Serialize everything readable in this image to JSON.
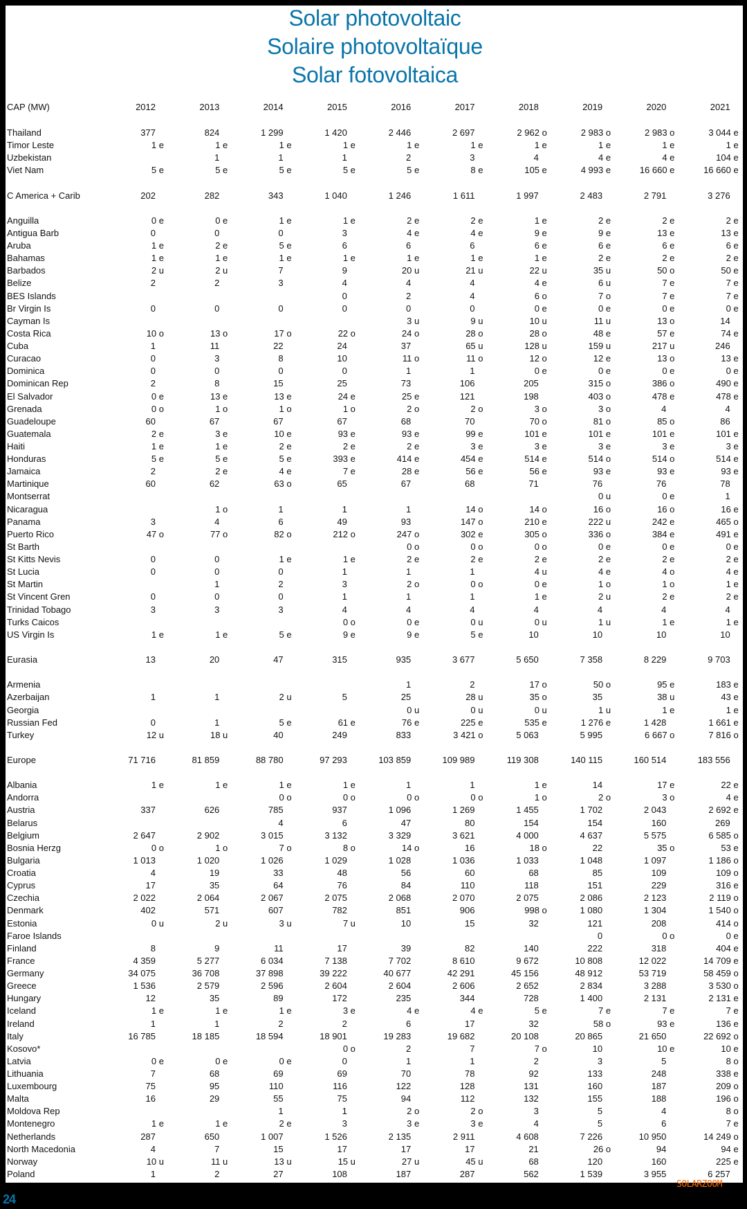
{
  "title": [
    "Solar photovoltaic",
    "Solaire photovoltaïque",
    "Solar fotovoltaica"
  ],
  "header": {
    "label": "CAP (MW)",
    "years": [
      "2012",
      "2013",
      "2014",
      "2015",
      "2016",
      "2017",
      "2018",
      "2019",
      "2020",
      "2021"
    ]
  },
  "rows": [
    {
      "label": "Thailand",
      "cells": [
        "377",
        "824",
        "1 299",
        "1 420",
        "2 446",
        "2 697",
        "2 962 o",
        "2 983 o",
        "2 983 o",
        "3 044 e"
      ]
    },
    {
      "label": "Timor Leste",
      "cells": [
        "1 e",
        "1 e",
        "1 e",
        "1 e",
        "1 e",
        "1 e",
        "1 e",
        "1 e",
        "1 e",
        "1 e"
      ]
    },
    {
      "label": "Uzbekistan",
      "cells": [
        "",
        "1",
        "1",
        "1",
        "2",
        "3",
        "4",
        "4 e",
        "4 e",
        "104 e"
      ]
    },
    {
      "label": "Viet Nam",
      "cells": [
        "5 e",
        "5 e",
        "5 e",
        "5 e",
        "5 e",
        "8 e",
        "105 e",
        "4 993 e",
        "16 660 e",
        "16 660 e"
      ]
    },
    {
      "spacer": true
    },
    {
      "label": "C America + Carib",
      "cells": [
        "202",
        "282",
        "343",
        "1 040",
        "1 246",
        "1 611",
        "1 997",
        "2 483",
        "2 791",
        "3 276"
      ]
    },
    {
      "spacer": true
    },
    {
      "label": "Anguilla",
      "cells": [
        "0 e",
        "0 e",
        "1 e",
        "1 e",
        "2 e",
        "2 e",
        "1 e",
        "2 e",
        "2 e",
        "2 e"
      ]
    },
    {
      "label": "Antigua Barb",
      "cells": [
        "0",
        "0",
        "0",
        "3",
        "4 e",
        "4 e",
        "9 e",
        "9 e",
        "13 e",
        "13 e"
      ]
    },
    {
      "label": "Aruba",
      "cells": [
        "1 e",
        "2 e",
        "5 e",
        "6",
        "6",
        "6",
        "6 e",
        "6 e",
        "6 e",
        "6 e"
      ]
    },
    {
      "label": "Bahamas",
      "cells": [
        "1 e",
        "1 e",
        "1 e",
        "1 e",
        "1 e",
        "1 e",
        "1 e",
        "2 e",
        "2 e",
        "2 e"
      ]
    },
    {
      "label": "Barbados",
      "cells": [
        "2 u",
        "2 u",
        "7",
        "9",
        "20 u",
        "21 u",
        "22 u",
        "35 u",
        "50 o",
        "50 e"
      ]
    },
    {
      "label": "Belize",
      "cells": [
        "2",
        "2",
        "3",
        "4",
        "4",
        "4",
        "4 e",
        "6 u",
        "7 e",
        "7 e"
      ]
    },
    {
      "label": "BES Islands",
      "cells": [
        "",
        "",
        "",
        "0",
        "2",
        "4",
        "6 o",
        "7 o",
        "7 e",
        "7 e"
      ]
    },
    {
      "label": "Br Virgin Is",
      "cells": [
        "0",
        "0",
        "0",
        "0",
        "0",
        "0",
        "0 e",
        "0 e",
        "0 e",
        "0 e"
      ]
    },
    {
      "label": "Cayman Is",
      "cells": [
        "",
        "",
        "",
        "",
        "3 u",
        "9 u",
        "10 u",
        "11 u",
        "13 o",
        "14"
      ]
    },
    {
      "label": "Costa Rica",
      "cells": [
        "10 o",
        "13 o",
        "17 o",
        "22 o",
        "24 o",
        "28 o",
        "28 o",
        "48 e",
        "57 e",
        "74 e"
      ]
    },
    {
      "label": "Cuba",
      "cells": [
        "1",
        "11",
        "22",
        "24",
        "37",
        "65 u",
        "128 u",
        "159 u",
        "217 u",
        "246"
      ]
    },
    {
      "label": "Curacao",
      "cells": [
        "0",
        "3",
        "8",
        "10",
        "11 o",
        "11 o",
        "12 o",
        "12 e",
        "13 o",
        "13 e"
      ]
    },
    {
      "label": "Dominica",
      "cells": [
        "0",
        "0",
        "0",
        "0",
        "1",
        "1",
        "0 e",
        "0 e",
        "0 e",
        "0 e"
      ]
    },
    {
      "label": "Dominican Rep",
      "cells": [
        "2",
        "8",
        "15",
        "25",
        "73",
        "106",
        "205",
        "315 o",
        "386 o",
        "490 e"
      ]
    },
    {
      "label": "El Salvador",
      "cells": [
        "0 e",
        "13 e",
        "13 e",
        "24 e",
        "25 e",
        "121",
        "198",
        "403 o",
        "478 e",
        "478 e"
      ]
    },
    {
      "label": "Grenada",
      "cells": [
        "0 o",
        "1 o",
        "1 o",
        "1 o",
        "2 o",
        "2 o",
        "3 o",
        "3 o",
        "4",
        "4"
      ]
    },
    {
      "label": "Guadeloupe",
      "cells": [
        "60",
        "67",
        "67",
        "67",
        "68",
        "70",
        "70 o",
        "81 o",
        "85 o",
        "86"
      ]
    },
    {
      "label": "Guatemala",
      "cells": [
        "2 e",
        "3 e",
        "10 e",
        "93 e",
        "93 e",
        "99 e",
        "101 e",
        "101 e",
        "101 e",
        "101 e"
      ]
    },
    {
      "label": "Haiti",
      "cells": [
        "1 e",
        "1 e",
        "2 e",
        "2 e",
        "2 e",
        "3 e",
        "3 e",
        "3 e",
        "3 e",
        "3 e"
      ]
    },
    {
      "label": "Honduras",
      "cells": [
        "5 e",
        "5 e",
        "5 e",
        "393 e",
        "414 e",
        "454 e",
        "514 e",
        "514 o",
        "514 o",
        "514 e"
      ]
    },
    {
      "label": "Jamaica",
      "cells": [
        "2",
        "2 e",
        "4 e",
        "7 e",
        "28 e",
        "56 e",
        "56 e",
        "93 e",
        "93 e",
        "93 e"
      ]
    },
    {
      "label": "Martinique",
      "cells": [
        "60",
        "62",
        "63 o",
        "65",
        "67",
        "68",
        "71",
        "76",
        "76",
        "78"
      ]
    },
    {
      "label": "Montserrat",
      "cells": [
        "",
        "",
        "",
        "",
        "",
        "",
        "",
        "0 u",
        "0 e",
        "1"
      ]
    },
    {
      "label": "Nicaragua",
      "cells": [
        "",
        "1 o",
        "1",
        "1",
        "1",
        "14 o",
        "14 o",
        "16 o",
        "16 o",
        "16 e"
      ]
    },
    {
      "label": "Panama",
      "cells": [
        "3",
        "4",
        "6",
        "49",
        "93",
        "147 o",
        "210 e",
        "222 u",
        "242 e",
        "465 o"
      ]
    },
    {
      "label": "Puerto Rico",
      "cells": [
        "47 o",
        "77 o",
        "82 o",
        "212 o",
        "247 o",
        "302 e",
        "305 o",
        "336 o",
        "384 e",
        "491 e"
      ]
    },
    {
      "label": "St Barth",
      "cells": [
        "",
        "",
        "",
        "",
        "0 o",
        "0 o",
        "0 o",
        "0 e",
        "0 e",
        "0 e"
      ]
    },
    {
      "label": "St Kitts Nevis",
      "cells": [
        "0",
        "0",
        "1 e",
        "1 e",
        "2 e",
        "2 e",
        "2 e",
        "2 e",
        "2 e",
        "2 e"
      ]
    },
    {
      "label": "St Lucia",
      "cells": [
        "0",
        "0",
        "0",
        "1",
        "1",
        "1",
        "4 u",
        "4 e",
        "4 o",
        "4 e"
      ]
    },
    {
      "label": "St Martin",
      "cells": [
        "",
        "1",
        "2",
        "3",
        "2 o",
        "0 o",
        "0 e",
        "1 o",
        "1 o",
        "1 e"
      ]
    },
    {
      "label": "St Vincent Gren",
      "cells": [
        "0",
        "0",
        "0",
        "1",
        "1",
        "1",
        "1 e",
        "2 u",
        "2 e",
        "2 e"
      ]
    },
    {
      "label": "Trinidad Tobago",
      "cells": [
        "3",
        "3",
        "3",
        "4",
        "4",
        "4",
        "4",
        "4",
        "4",
        "4"
      ]
    },
    {
      "label": "Turks Caicos",
      "cells": [
        "",
        "",
        "",
        "0 o",
        "0 e",
        "0 u",
        "0 u",
        "1 u",
        "1 e",
        "1 e"
      ]
    },
    {
      "label": "US Virgin Is",
      "cells": [
        "1 e",
        "1 e",
        "5 e",
        "9 e",
        "9 e",
        "5 e",
        "10",
        "10",
        "10",
        "10"
      ]
    },
    {
      "spacer": true
    },
    {
      "label": "Eurasia",
      "cells": [
        "13",
        "20",
        "47",
        "315",
        "935",
        "3 677",
        "5 650",
        "7 358",
        "8 229",
        "9 703"
      ]
    },
    {
      "spacer": true
    },
    {
      "label": "Armenia",
      "cells": [
        "",
        "",
        "",
        "",
        "1",
        "2",
        "17 o",
        "50 o",
        "95 e",
        "183 e"
      ]
    },
    {
      "label": "Azerbaijan",
      "cells": [
        "1",
        "1",
        "2 u",
        "5",
        "25",
        "28 u",
        "35 o",
        "35",
        "38 u",
        "43 e"
      ]
    },
    {
      "label": "Georgia",
      "cells": [
        "",
        "",
        "",
        "",
        "0 u",
        "0 u",
        "0 u",
        "1 u",
        "1 e",
        "1 e"
      ]
    },
    {
      "label": "Russian Fed",
      "cells": [
        "0",
        "1",
        "5 e",
        "61 e",
        "76 e",
        "225 e",
        "535 e",
        "1 276 e",
        "1 428",
        "1 661 e"
      ]
    },
    {
      "label": "Turkey",
      "cells": [
        "12 u",
        "18 u",
        "40",
        "249",
        "833",
        "3 421 o",
        "5 063",
        "5 995",
        "6 667 o",
        "7 816 o"
      ]
    },
    {
      "spacer": true
    },
    {
      "label": "Europe",
      "cells": [
        "71 716",
        "81 859",
        "88 780",
        "97 293",
        "103 859",
        "109 989",
        "119 308",
        "140 115",
        "160 514",
        "183 556"
      ]
    },
    {
      "spacer": true
    },
    {
      "label": "Albania",
      "cells": [
        "1 e",
        "1 e",
        "1 e",
        "1 e",
        "1",
        "1",
        "1 e",
        "14",
        "17 e",
        "22 e"
      ]
    },
    {
      "label": "Andorra",
      "cells": [
        "",
        "",
        "0 o",
        "0 o",
        "0 o",
        "0 o",
        "1 o",
        "2 o",
        "3 o",
        "4 e"
      ]
    },
    {
      "label": "Austria",
      "cells": [
        "337",
        "626",
        "785",
        "937",
        "1 096",
        "1 269",
        "1 455",
        "1 702",
        "2 043",
        "2 692 e"
      ]
    },
    {
      "label": "Belarus",
      "cells": [
        "",
        "",
        "4",
        "6",
        "47",
        "80",
        "154",
        "154",
        "160",
        "269"
      ]
    },
    {
      "label": "Belgium",
      "cells": [
        "2 647",
        "2 902",
        "3 015",
        "3 132",
        "3 329",
        "3 621",
        "4 000",
        "4 637",
        "5 575",
        "6 585 o"
      ]
    },
    {
      "label": "Bosnia Herzg",
      "cells": [
        "0 o",
        "1 o",
        "7 o",
        "8 o",
        "14 o",
        "16",
        "18 o",
        "22",
        "35 o",
        "53 e"
      ]
    },
    {
      "label": "Bulgaria",
      "cells": [
        "1 013",
        "1 020",
        "1 026",
        "1 029",
        "1 028",
        "1 036",
        "1 033",
        "1 048",
        "1 097",
        "1 186 o"
      ]
    },
    {
      "label": "Croatia",
      "cells": [
        "4",
        "19",
        "33",
        "48",
        "56",
        "60",
        "68",
        "85",
        "109",
        "109 o"
      ]
    },
    {
      "label": "Cyprus",
      "cells": [
        "17",
        "35",
        "64",
        "76",
        "84",
        "110",
        "118",
        "151",
        "229",
        "316 e"
      ]
    },
    {
      "label": "Czechia",
      "cells": [
        "2 022",
        "2 064",
        "2 067",
        "2 075",
        "2 068",
        "2 070",
        "2 075",
        "2 086",
        "2 123",
        "2 119 o"
      ]
    },
    {
      "label": "Denmark",
      "cells": [
        "402",
        "571",
        "607",
        "782",
        "851",
        "906",
        "998 o",
        "1 080",
        "1 304",
        "1 540 o"
      ]
    },
    {
      "label": "Estonia",
      "cells": [
        "0 u",
        "2 u",
        "3 u",
        "7 u",
        "10",
        "15",
        "32",
        "121",
        "208",
        "414 o"
      ]
    },
    {
      "label": "Faroe Islands",
      "cells": [
        "",
        "",
        "",
        "",
        "",
        "",
        "",
        "0",
        "0 o",
        "0 e"
      ]
    },
    {
      "label": "Finland",
      "cells": [
        "8",
        "9",
        "11",
        "17",
        "39",
        "82",
        "140",
        "222",
        "318",
        "404 e"
      ]
    },
    {
      "label": "France",
      "cells": [
        "4 359",
        "5 277",
        "6 034",
        "7 138",
        "7 702",
        "8 610",
        "9 672",
        "10 808",
        "12 022",
        "14 709 e"
      ]
    },
    {
      "label": "Germany",
      "cells": [
        "34 075",
        "36 708",
        "37 898",
        "39 222",
        "40 677",
        "42 291",
        "45 156",
        "48 912",
        "53 719",
        "58 459 o"
      ]
    },
    {
      "label": "Greece",
      "cells": [
        "1 536",
        "2 579",
        "2 596",
        "2 604",
        "2 604",
        "2 606",
        "2 652",
        "2 834",
        "3 288",
        "3 530 o"
      ]
    },
    {
      "label": "Hungary",
      "cells": [
        "12",
        "35",
        "89",
        "172",
        "235",
        "344",
        "728",
        "1 400",
        "2 131",
        "2 131 e"
      ]
    },
    {
      "label": "Iceland",
      "cells": [
        "1 e",
        "1 e",
        "1 e",
        "3 e",
        "4 e",
        "4 e",
        "5 e",
        "7 e",
        "7 e",
        "7 e"
      ]
    },
    {
      "label": "Ireland",
      "cells": [
        "1",
        "1",
        "2",
        "2",
        "6",
        "17",
        "32",
        "58 o",
        "93 e",
        "136 e"
      ]
    },
    {
      "label": "Italy",
      "cells": [
        "16 785",
        "18 185",
        "18 594",
        "18 901",
        "19 283",
        "19 682",
        "20 108",
        "20 865",
        "21 650",
        "22 692 o"
      ]
    },
    {
      "label": "Kosovo*",
      "cells": [
        "",
        "",
        "",
        "0 o",
        "2",
        "7",
        "7 o",
        "10",
        "10 e",
        "10 e"
      ]
    },
    {
      "label": "Latvia",
      "cells": [
        "0 e",
        "0 e",
        "0 e",
        "0",
        "1",
        "1",
        "2",
        "3",
        "5",
        "8 o"
      ]
    },
    {
      "label": "Lithuania",
      "cells": [
        "7",
        "68",
        "69",
        "69",
        "70",
        "78",
        "92",
        "133",
        "248",
        "338 e"
      ]
    },
    {
      "label": "Luxembourg",
      "cells": [
        "75",
        "95",
        "110",
        "116",
        "122",
        "128",
        "131",
        "160",
        "187",
        "209 o"
      ]
    },
    {
      "label": "Malta",
      "cells": [
        "16",
        "29",
        "55",
        "75",
        "94",
        "112",
        "132",
        "155",
        "188",
        "196 o"
      ]
    },
    {
      "label": "Moldova Rep",
      "cells": [
        "",
        "",
        "1",
        "1",
        "2 o",
        "2 o",
        "3",
        "5",
        "4",
        "8 o"
      ]
    },
    {
      "label": "Montenegro",
      "cells": [
        "1 e",
        "1 e",
        "2 e",
        "3",
        "3 e",
        "3 e",
        "4",
        "5",
        "6",
        "7 e"
      ]
    },
    {
      "label": "Netherlands",
      "cells": [
        "287",
        "650",
        "1 007",
        "1 526",
        "2 135",
        "2 911",
        "4 608",
        "7 226",
        "10 950",
        "14 249 o"
      ]
    },
    {
      "label": "North Macedonia",
      "cells": [
        "4",
        "7",
        "15",
        "17",
        "17",
        "17",
        "21",
        "26 o",
        "94",
        "94 e"
      ]
    },
    {
      "label": "Norway",
      "cells": [
        "10 u",
        "11 u",
        "13 u",
        "15 u",
        "27 u",
        "45 u",
        "68",
        "120",
        "160",
        "225 e"
      ]
    },
    {
      "label": "Poland",
      "cells": [
        "1",
        "2",
        "27",
        "108",
        "187",
        "287",
        "562",
        "1 539",
        "3 955",
        "6 257"
      ]
    }
  ],
  "footer": {
    "page_number": "24",
    "watermark": "SOLARZOOM"
  }
}
